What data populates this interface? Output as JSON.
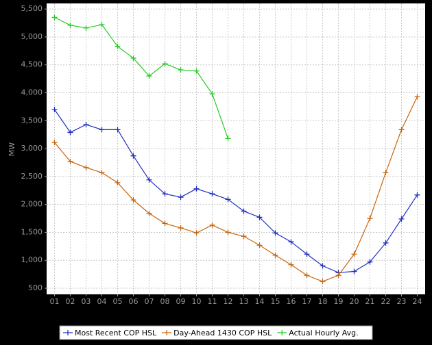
{
  "chart_data": {
    "type": "line",
    "y_label": "MW",
    "categories": [
      "01",
      "02",
      "03",
      "04",
      "05",
      "06",
      "07",
      "08",
      "09",
      "10",
      "11",
      "12",
      "13",
      "14",
      "15",
      "16",
      "17",
      "18",
      "19",
      "20",
      "21",
      "22",
      "23",
      "24"
    ],
    "series": [
      {
        "name": "Most Recent COP HSL",
        "color": "#1f2fbf",
        "values": [
          3700,
          3290,
          3430,
          3340,
          3340,
          2870,
          2440,
          2190,
          2130,
          2280,
          2190,
          2090,
          1880,
          1770,
          1490,
          1330,
          1110,
          900,
          780,
          800,
          970,
          1310,
          1740,
          2170
        ]
      },
      {
        "name": "Day-Ahead 1430 COP HSL",
        "color": "#c8640a",
        "values": [
          3110,
          2770,
          2660,
          2570,
          2390,
          2080,
          1840,
          1660,
          1580,
          1490,
          1630,
          1500,
          1430,
          1270,
          1090,
          920,
          730,
          620,
          730,
          1110,
          1750,
          2570,
          3340,
          3930
        ]
      },
      {
        "name": "Actual Hourly Avg.",
        "color": "#22cc22",
        "values": [
          5350,
          5210,
          5160,
          5220,
          4830,
          4620,
          4300,
          4520,
          4410,
          4390,
          3980,
          3180,
          null,
          null,
          null,
          null,
          null,
          null,
          null,
          null,
          null,
          null,
          null,
          null
        ]
      }
    ],
    "ylim": [
      390,
      5600
    ],
    "yticks": [
      500,
      {
        "value": 1000,
        "label": "1,000"
      },
      {
        "value": 1500,
        "label": "1,500"
      },
      {
        "value": 2000,
        "label": "2,000"
      },
      {
        "value": 2500,
        "label": "2,500"
      },
      {
        "value": 3000,
        "label": "3,000"
      },
      {
        "value": 3500,
        "label": "3,500"
      },
      {
        "value": 4000,
        "label": "4,000"
      },
      {
        "value": 4500,
        "label": "4,500"
      },
      {
        "value": 5000,
        "label": "5,000"
      },
      {
        "value": 5500,
        "label": "5,500"
      }
    ],
    "grid": true,
    "legend": "bottom"
  }
}
